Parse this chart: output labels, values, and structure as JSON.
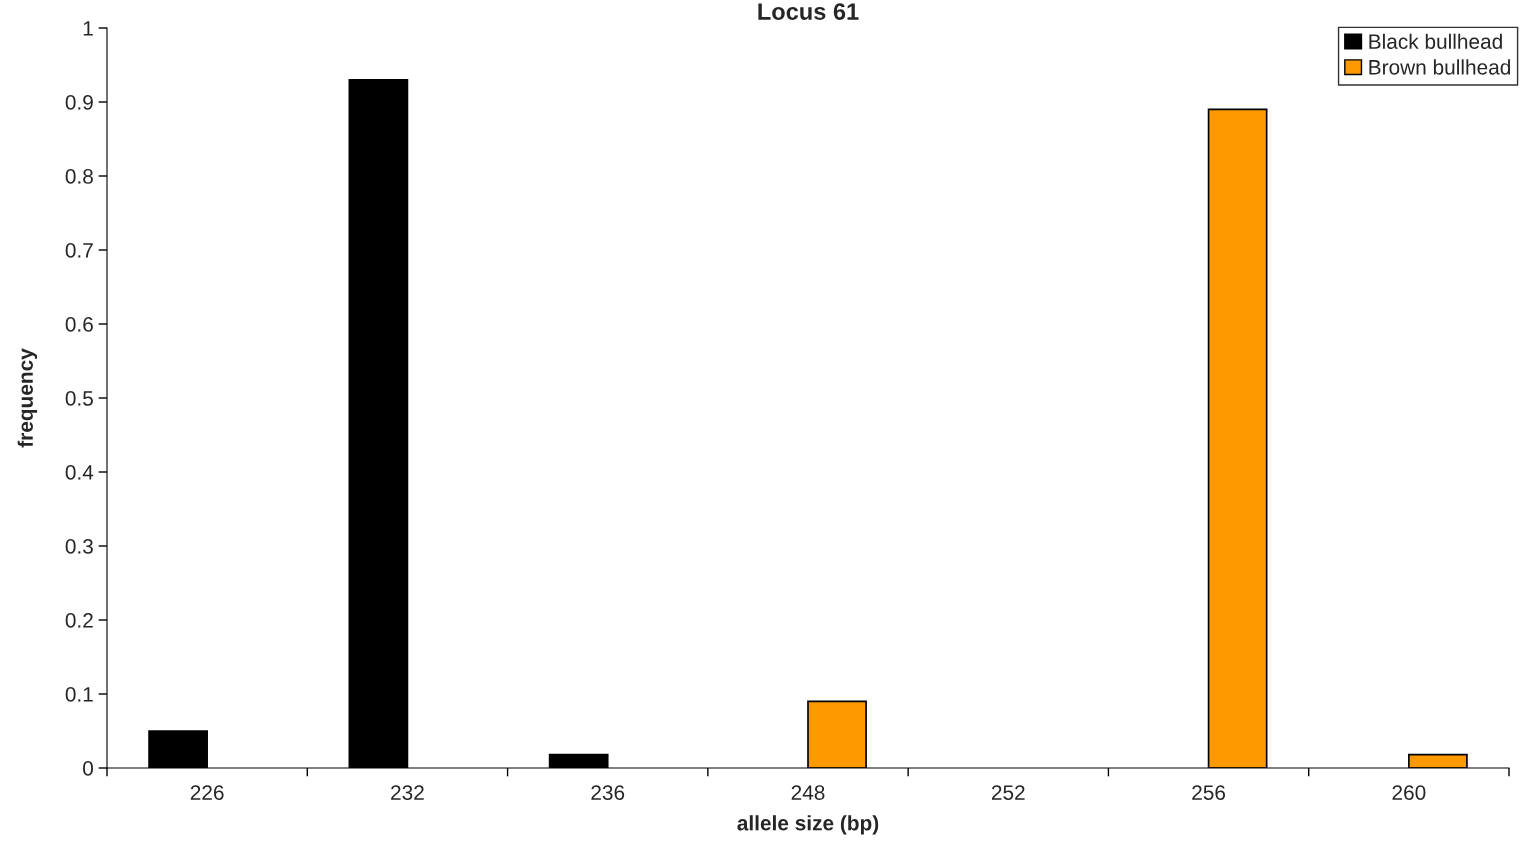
{
  "chart_data": {
    "type": "bar",
    "title": "Locus 61",
    "xlabel": "allele size (bp)",
    "ylabel": "frequency",
    "categories": [
      "226",
      "232",
      "236",
      "248",
      "252",
      "256",
      "260"
    ],
    "series": [
      {
        "name": "Black bullhead",
        "color": "#000000",
        "values": [
          0.05,
          0.93,
          0.018,
          null,
          null,
          null,
          null
        ]
      },
      {
        "name": "Brown bullhead",
        "color": "#ff9900",
        "values": [
          null,
          null,
          null,
          0.09,
          null,
          0.89,
          0.018
        ]
      }
    ],
    "ylim": [
      0,
      1
    ],
    "yticks": [
      0,
      0.1,
      0.2,
      0.3,
      0.4,
      0.5,
      0.6,
      0.7,
      0.8,
      0.9,
      1
    ],
    "grid": false,
    "legend": "top right"
  }
}
